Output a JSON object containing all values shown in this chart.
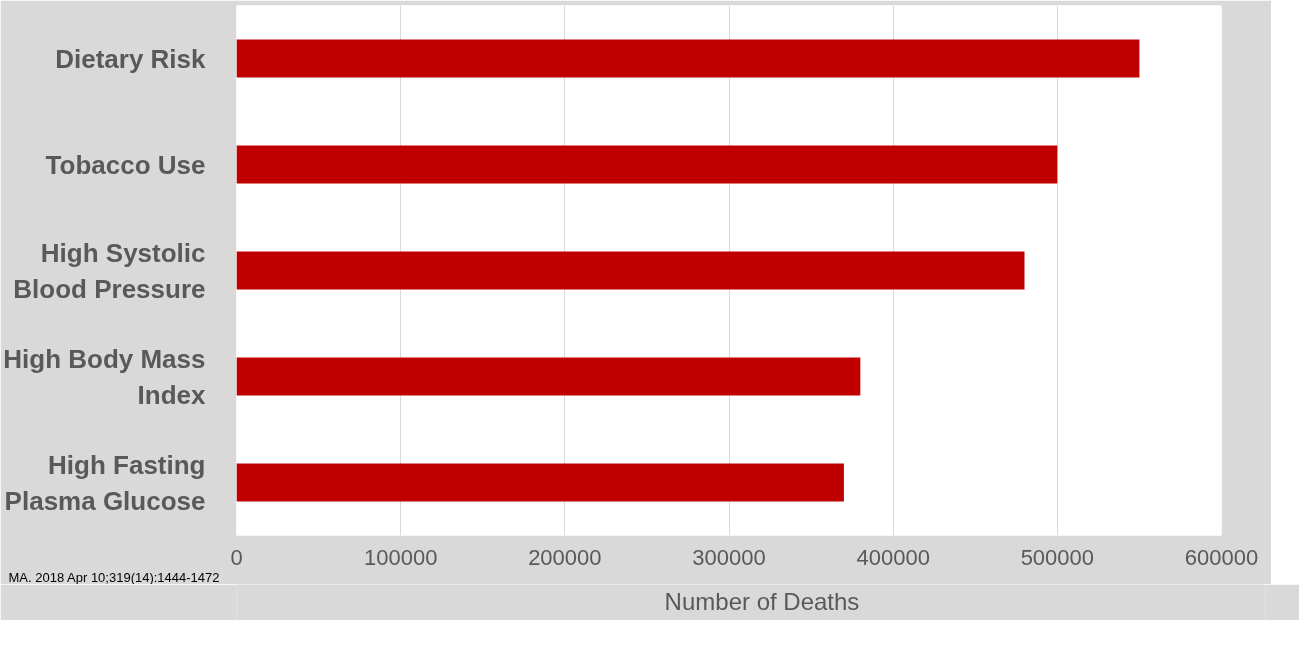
{
  "chart_data": {
    "type": "bar",
    "orientation": "horizontal",
    "categories": [
      "Dietary Risk",
      "Tobacco Use",
      "High Systolic Blood Pressure",
      "High Body Mass Index",
      "High Fasting Plasma Glucose"
    ],
    "series": [
      {
        "name": "Number of Deaths",
        "color": "#c00000",
        "values": [
          550000,
          500000,
          480000,
          380000,
          370000
        ]
      }
    ],
    "xlim": [
      0,
      600000
    ],
    "xticks": [
      0,
      100000,
      200000,
      300000,
      400000,
      500000,
      600000
    ],
    "grid": "x",
    "legend": "bottom",
    "annotations": [
      "MA. 2018 Apr 10;319(14):1444-1472"
    ]
  }
}
